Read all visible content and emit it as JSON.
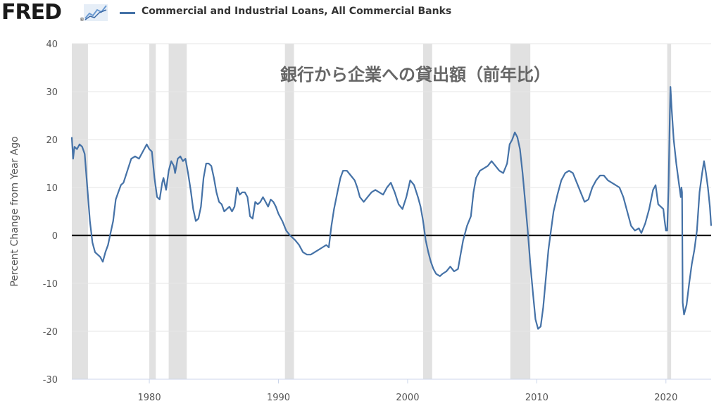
{
  "header": {
    "logo_text": "FRED",
    "logo_reg": "®",
    "legend_series": "Commercial and Industrial Loans, All Commercial Banks",
    "series_color": "#4572a7"
  },
  "chart_data": {
    "type": "line",
    "title": "",
    "annotation": "銀行から企業への貸出額（前年比）",
    "ylabel": "Percent Change from Year Ago",
    "xlabel": "",
    "ylim": [
      -30,
      40
    ],
    "xlim": [
      1974.0,
      2023.5
    ],
    "yticks": [
      40,
      30,
      20,
      10,
      0,
      -10,
      -20,
      -30
    ],
    "xticks": [
      1980,
      1990,
      2000,
      2010,
      2020
    ],
    "grid": "horizontal",
    "zero_line": true,
    "recessions": [
      [
        1974.0,
        1975.25
      ],
      [
        1980.0,
        1980.5
      ],
      [
        1981.5,
        1982.9
      ],
      [
        1990.5,
        1991.2
      ],
      [
        2001.2,
        2001.9
      ],
      [
        2007.95,
        2009.5
      ],
      [
        2020.1,
        2020.4
      ]
    ],
    "series": [
      {
        "name": "Commercial and Industrial Loans, All Commercial Banks",
        "color": "#4572a7",
        "points": [
          [
            1974.0,
            20.5
          ],
          [
            1974.1,
            16.0
          ],
          [
            1974.2,
            18.5
          ],
          [
            1974.4,
            18.0
          ],
          [
            1974.6,
            19.0
          ],
          [
            1974.8,
            18.5
          ],
          [
            1975.0,
            17.0
          ],
          [
            1975.2,
            10.0
          ],
          [
            1975.4,
            3.0
          ],
          [
            1975.6,
            -1.5
          ],
          [
            1975.8,
            -3.5
          ],
          [
            1976.0,
            -4.0
          ],
          [
            1976.2,
            -4.5
          ],
          [
            1976.4,
            -5.5
          ],
          [
            1976.6,
            -3.5
          ],
          [
            1976.8,
            -2.0
          ],
          [
            1977.0,
            0.5
          ],
          [
            1977.2,
            3.0
          ],
          [
            1977.4,
            7.5
          ],
          [
            1977.6,
            9.0
          ],
          [
            1977.8,
            10.5
          ],
          [
            1978.0,
            11.0
          ],
          [
            1978.3,
            13.5
          ],
          [
            1978.6,
            16.0
          ],
          [
            1978.9,
            16.5
          ],
          [
            1979.2,
            16.0
          ],
          [
            1979.5,
            17.5
          ],
          [
            1979.8,
            19.0
          ],
          [
            1980.0,
            18.0
          ],
          [
            1980.2,
            17.5
          ],
          [
            1980.4,
            12.0
          ],
          [
            1980.6,
            8.0
          ],
          [
            1980.8,
            7.5
          ],
          [
            1981.0,
            11.0
          ],
          [
            1981.1,
            12.0
          ],
          [
            1981.3,
            9.5
          ],
          [
            1981.5,
            13.5
          ],
          [
            1981.7,
            15.5
          ],
          [
            1981.9,
            14.5
          ],
          [
            1982.0,
            13.0
          ],
          [
            1982.2,
            16.0
          ],
          [
            1982.4,
            16.5
          ],
          [
            1982.6,
            15.5
          ],
          [
            1982.8,
            16.0
          ],
          [
            1983.0,
            13.0
          ],
          [
            1983.2,
            9.5
          ],
          [
            1983.4,
            5.5
          ],
          [
            1983.6,
            3.0
          ],
          [
            1983.8,
            3.5
          ],
          [
            1984.0,
            6.0
          ],
          [
            1984.2,
            12.0
          ],
          [
            1984.4,
            15.0
          ],
          [
            1984.6,
            15.0
          ],
          [
            1984.8,
            14.5
          ],
          [
            1985.0,
            12.0
          ],
          [
            1985.2,
            9.0
          ],
          [
            1985.4,
            7.0
          ],
          [
            1985.6,
            6.5
          ],
          [
            1985.8,
            5.0
          ],
          [
            1986.0,
            5.5
          ],
          [
            1986.2,
            6.0
          ],
          [
            1986.4,
            5.0
          ],
          [
            1986.6,
            6.0
          ],
          [
            1986.8,
            10.0
          ],
          [
            1987.0,
            8.5
          ],
          [
            1987.2,
            9.0
          ],
          [
            1987.4,
            9.0
          ],
          [
            1987.6,
            8.0
          ],
          [
            1987.8,
            4.0
          ],
          [
            1988.0,
            3.5
          ],
          [
            1988.2,
            7.0
          ],
          [
            1988.4,
            6.5
          ],
          [
            1988.6,
            7.0
          ],
          [
            1988.8,
            8.0
          ],
          [
            1989.0,
            7.0
          ],
          [
            1989.2,
            6.0
          ],
          [
            1989.4,
            7.5
          ],
          [
            1989.6,
            7.0
          ],
          [
            1989.8,
            6.0
          ],
          [
            1990.0,
            4.5
          ],
          [
            1990.3,
            3.0
          ],
          [
            1990.6,
            1.0
          ],
          [
            1990.9,
            0.0
          ],
          [
            1991.1,
            -0.5
          ],
          [
            1991.3,
            -1.0
          ],
          [
            1991.6,
            -2.0
          ],
          [
            1991.9,
            -3.5
          ],
          [
            1992.2,
            -4.0
          ],
          [
            1992.5,
            -4.0
          ],
          [
            1992.8,
            -3.5
          ],
          [
            1993.1,
            -3.0
          ],
          [
            1993.4,
            -2.5
          ],
          [
            1993.7,
            -2.0
          ],
          [
            1993.9,
            -2.5
          ],
          [
            1994.1,
            2.0
          ],
          [
            1994.3,
            5.5
          ],
          [
            1994.6,
            9.5
          ],
          [
            1994.8,
            12.0
          ],
          [
            1995.0,
            13.5
          ],
          [
            1995.3,
            13.5
          ],
          [
            1995.6,
            12.5
          ],
          [
            1995.9,
            11.5
          ],
          [
            1996.1,
            10.0
          ],
          [
            1996.3,
            8.0
          ],
          [
            1996.6,
            7.0
          ],
          [
            1996.9,
            8.0
          ],
          [
            1997.2,
            9.0
          ],
          [
            1997.5,
            9.5
          ],
          [
            1997.8,
            9.0
          ],
          [
            1998.1,
            8.5
          ],
          [
            1998.4,
            10.0
          ],
          [
            1998.7,
            11.0
          ],
          [
            1999.0,
            9.0
          ],
          [
            1999.3,
            6.5
          ],
          [
            1999.6,
            5.5
          ],
          [
            1999.9,
            8.0
          ],
          [
            2000.2,
            11.5
          ],
          [
            2000.5,
            10.5
          ],
          [
            2000.8,
            8.0
          ],
          [
            2001.0,
            6.0
          ],
          [
            2001.2,
            3.0
          ],
          [
            2001.4,
            -1.0
          ],
          [
            2001.6,
            -3.5
          ],
          [
            2001.8,
            -5.5
          ],
          [
            2002.0,
            -7.0
          ],
          [
            2002.2,
            -8.0
          ],
          [
            2002.5,
            -8.5
          ],
          [
            2002.7,
            -8.0
          ],
          [
            2003.0,
            -7.5
          ],
          [
            2003.3,
            -6.5
          ],
          [
            2003.6,
            -7.5
          ],
          [
            2003.9,
            -7.0
          ],
          [
            2004.1,
            -4.0
          ],
          [
            2004.3,
            -1.0
          ],
          [
            2004.6,
            2.0
          ],
          [
            2004.9,
            4.0
          ],
          [
            2005.1,
            9.0
          ],
          [
            2005.3,
            12.0
          ],
          [
            2005.6,
            13.5
          ],
          [
            2005.9,
            14.0
          ],
          [
            2006.2,
            14.5
          ],
          [
            2006.5,
            15.5
          ],
          [
            2006.8,
            14.5
          ],
          [
            2007.1,
            13.5
          ],
          [
            2007.4,
            13.0
          ],
          [
            2007.7,
            15.0
          ],
          [
            2007.9,
            19.0
          ],
          [
            2008.1,
            20.0
          ],
          [
            2008.3,
            21.5
          ],
          [
            2008.5,
            20.5
          ],
          [
            2008.7,
            18.0
          ],
          [
            2008.9,
            13.0
          ],
          [
            2009.1,
            7.0
          ],
          [
            2009.3,
            1.0
          ],
          [
            2009.5,
            -6.0
          ],
          [
            2009.7,
            -12.0
          ],
          [
            2009.9,
            -17.5
          ],
          [
            2010.1,
            -19.5
          ],
          [
            2010.3,
            -19.0
          ],
          [
            2010.5,
            -15.0
          ],
          [
            2010.7,
            -9.0
          ],
          [
            2010.9,
            -3.0
          ],
          [
            2011.1,
            1.0
          ],
          [
            2011.3,
            5.0
          ],
          [
            2011.6,
            8.5
          ],
          [
            2011.9,
            11.5
          ],
          [
            2012.2,
            13.0
          ],
          [
            2012.5,
            13.5
          ],
          [
            2012.8,
            13.0
          ],
          [
            2013.1,
            11.0
          ],
          [
            2013.4,
            9.0
          ],
          [
            2013.7,
            7.0
          ],
          [
            2014.0,
            7.5
          ],
          [
            2014.3,
            10.0
          ],
          [
            2014.6,
            11.5
          ],
          [
            2014.9,
            12.5
          ],
          [
            2015.2,
            12.5
          ],
          [
            2015.5,
            11.5
          ],
          [
            2015.8,
            11.0
          ],
          [
            2016.1,
            10.5
          ],
          [
            2016.4,
            10.0
          ],
          [
            2016.7,
            8.0
          ],
          [
            2017.0,
            5.0
          ],
          [
            2017.3,
            2.0
          ],
          [
            2017.6,
            1.0
          ],
          [
            2017.9,
            1.5
          ],
          [
            2018.1,
            0.5
          ],
          [
            2018.4,
            2.5
          ],
          [
            2018.7,
            5.5
          ],
          [
            2019.0,
            9.5
          ],
          [
            2019.2,
            10.5
          ],
          [
            2019.4,
            6.5
          ],
          [
            2019.6,
            6.0
          ],
          [
            2019.8,
            5.5
          ],
          [
            2019.9,
            3.0
          ],
          [
            2020.0,
            1.0
          ],
          [
            2020.1,
            1.0
          ],
          [
            2020.2,
            10.0
          ],
          [
            2020.3,
            25.0
          ],
          [
            2020.35,
            31.0
          ],
          [
            2020.45,
            26.0
          ],
          [
            2020.6,
            20.0
          ],
          [
            2020.8,
            15.0
          ],
          [
            2021.0,
            11.0
          ],
          [
            2021.15,
            8.0
          ],
          [
            2021.2,
            10.0
          ],
          [
            2021.25,
            9.0
          ],
          [
            2021.3,
            -14.0
          ],
          [
            2021.4,
            -16.5
          ],
          [
            2021.6,
            -14.5
          ],
          [
            2021.8,
            -10.0
          ],
          [
            2022.0,
            -6.0
          ],
          [
            2022.2,
            -3.0
          ],
          [
            2022.4,
            1.0
          ],
          [
            2022.6,
            9.0
          ],
          [
            2022.8,
            13.0
          ],
          [
            2022.95,
            15.5
          ],
          [
            2023.1,
            13.0
          ],
          [
            2023.25,
            10.0
          ],
          [
            2023.4,
            6.0
          ],
          [
            2023.5,
            2.0
          ]
        ]
      }
    ]
  }
}
